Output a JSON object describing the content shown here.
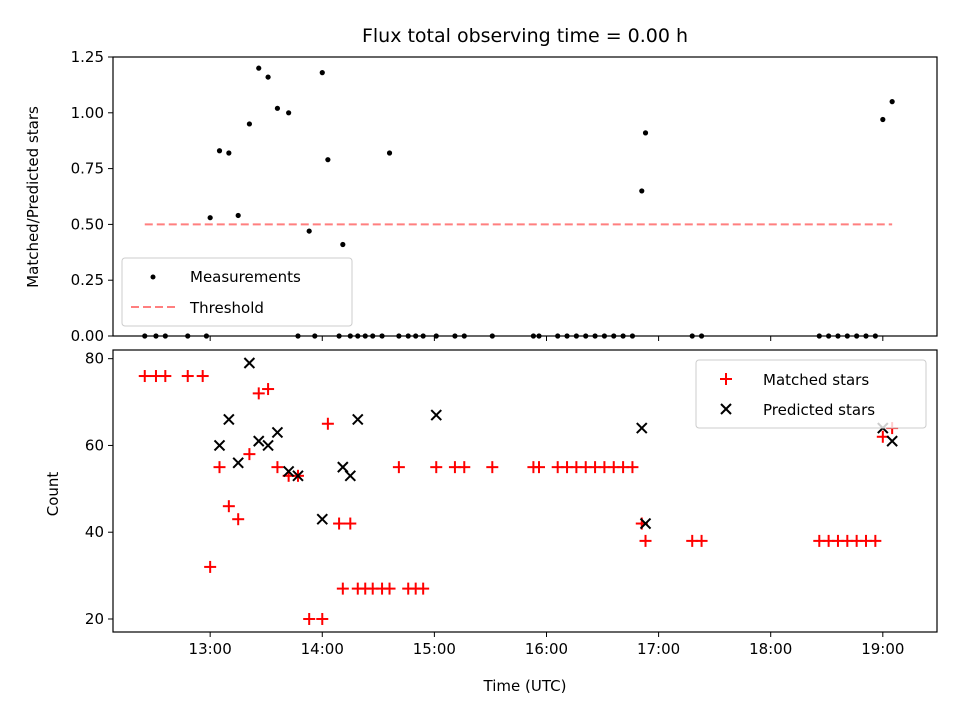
{
  "chart_data": [
    {
      "type": "scatter",
      "title": "Flux total observing time = 0.00 h",
      "xlabel": "",
      "ylabel": "Matched/Predicted stars",
      "xlim": [
        "12:08",
        "19:29"
      ],
      "ylim": [
        0,
        1.25
      ],
      "yticks": [
        0.0,
        0.25,
        0.5,
        0.75,
        1.0,
        1.25
      ],
      "ytick_labels": [
        "0.00",
        "0.25",
        "0.50",
        "0.75",
        "1.00",
        "1.25"
      ],
      "legend": {
        "placement": "bottom-left",
        "entries": [
          "Measurements",
          "Threshold"
        ]
      },
      "series": [
        {
          "name": "Measurements",
          "color": "#000000",
          "marker": "dot",
          "x": [
            "12:25",
            "12:31",
            "12:36",
            "12:48",
            "12:58",
            "13:00",
            "13:05",
            "13:10",
            "13:15",
            "13:21",
            "13:26",
            "13:31",
            "13:36",
            "13:42",
            "13:47",
            "13:53",
            "13:56",
            "14:00",
            "14:03",
            "14:09",
            "14:11",
            "14:15",
            "14:19",
            "14:23",
            "14:27",
            "14:32",
            "14:36",
            "14:41",
            "14:46",
            "14:50",
            "14:54",
            "15:01",
            "15:11",
            "15:16",
            "15:31",
            "15:53",
            "15:56",
            "16:06",
            "16:11",
            "16:16",
            "16:21",
            "16:26",
            "16:31",
            "16:36",
            "16:41",
            "16:46",
            "16:51",
            "16:53",
            "17:18",
            "17:23",
            "18:26",
            "18:31",
            "18:36",
            "18:41",
            "18:46",
            "18:51",
            "18:56",
            "19:00",
            "19:05"
          ],
          "y": [
            0,
            0,
            0,
            0,
            0,
            0.53,
            0.83,
            0.82,
            0.54,
            0.95,
            1.2,
            1.16,
            1.02,
            1.0,
            0,
            0.47,
            0,
            1.18,
            0.79,
            0,
            0.41,
            0,
            0,
            0,
            0,
            0,
            0.82,
            0,
            0,
            0,
            0,
            0,
            0,
            0,
            0,
            0,
            0,
            0,
            0,
            0,
            0,
            0,
            0,
            0,
            0,
            0,
            0.65,
            0.91,
            0,
            0,
            0,
            0,
            0,
            0,
            0,
            0,
            0,
            0.97,
            1.05
          ]
        },
        {
          "name": "Threshold",
          "color": "#ff7f7f",
          "style": "dashed",
          "x": [
            "12:25",
            "19:05"
          ],
          "y": [
            0.5,
            0.5
          ]
        }
      ]
    },
    {
      "type": "scatter",
      "title": "",
      "xlabel": "Time (UTC)",
      "ylabel": "Count",
      "xlim": [
        "12:08",
        "19:29"
      ],
      "ylim": [
        17,
        82
      ],
      "xticks": [
        "13:00",
        "14:00",
        "15:00",
        "16:00",
        "17:00",
        "18:00",
        "19:00"
      ],
      "yticks": [
        20,
        40,
        60,
        80
      ],
      "ytick_labels": [
        "20",
        "40",
        "60",
        "80"
      ],
      "legend": {
        "placement": "top-right",
        "entries": [
          "Matched stars",
          "Predicted stars"
        ]
      },
      "series": [
        {
          "name": "Matched stars",
          "color": "#ff0000",
          "marker": "+",
          "x": [
            "12:25",
            "12:31",
            "12:36",
            "12:48",
            "12:56",
            "13:00",
            "13:05",
            "13:10",
            "13:15",
            "13:21",
            "13:26",
            "13:31",
            "13:36",
            "13:42",
            "13:47",
            "13:53",
            "14:00",
            "14:03",
            "14:09",
            "14:11",
            "14:15",
            "14:19",
            "14:23",
            "14:27",
            "14:32",
            "14:36",
            "14:41",
            "14:46",
            "14:50",
            "14:54",
            "15:01",
            "15:11",
            "15:16",
            "15:31",
            "15:53",
            "15:56",
            "16:06",
            "16:11",
            "16:16",
            "16:21",
            "16:26",
            "16:31",
            "16:36",
            "16:41",
            "16:46",
            "16:51",
            "16:53",
            "17:18",
            "17:23",
            "18:26",
            "18:31",
            "18:36",
            "18:41",
            "18:46",
            "18:51",
            "18:56",
            "19:00",
            "19:05"
          ],
          "y": [
            76,
            76,
            76,
            76,
            76,
            32,
            55,
            46,
            43,
            58,
            72,
            73,
            55,
            53,
            53,
            20,
            20,
            65,
            42,
            27,
            42,
            27,
            27,
            27,
            27,
            27,
            55,
            27,
            27,
            27,
            55,
            55,
            55,
            55,
            55,
            55,
            55,
            55,
            55,
            55,
            55,
            55,
            55,
            55,
            55,
            42,
            38,
            38,
            38,
            38,
            38,
            38,
            38,
            38,
            38,
            38,
            62,
            64
          ]
        },
        {
          "name": "Predicted stars",
          "color": "#000000",
          "marker": "x",
          "x": [
            "13:05",
            "13:10",
            "13:15",
            "13:21",
            "13:26",
            "13:31",
            "13:36",
            "13:42",
            "13:47",
            "14:00",
            "14:11",
            "14:15",
            "14:19",
            "15:01",
            "16:51",
            "16:53",
            "19:00",
            "19:05"
          ],
          "y": [
            60,
            66,
            56,
            79,
            61,
            60,
            63,
            54,
            53,
            43,
            55,
            53,
            66,
            67,
            64,
            42,
            64,
            61
          ]
        }
      ]
    }
  ]
}
